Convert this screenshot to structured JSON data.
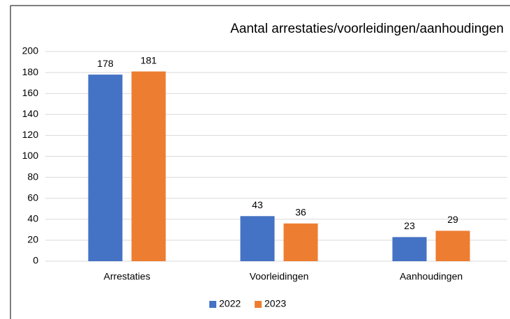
{
  "chart_data": {
    "type": "bar",
    "title": "Aantal arrestaties/voorleidingen/aanhoudingen",
    "categories": [
      "Arrestaties",
      "Voorleidingen",
      "Aanhoudingen"
    ],
    "series": [
      {
        "name": "2022",
        "color": "#4472c4",
        "values": [
          178,
          43,
          23
        ]
      },
      {
        "name": "2023",
        "color": "#ed7d31",
        "values": [
          181,
          36,
          29
        ]
      }
    ],
    "ylim": [
      0,
      200
    ],
    "yticks": [
      0,
      20,
      40,
      60,
      80,
      100,
      120,
      140,
      160,
      180,
      200
    ],
    "grid": true,
    "legend": "bottom"
  }
}
